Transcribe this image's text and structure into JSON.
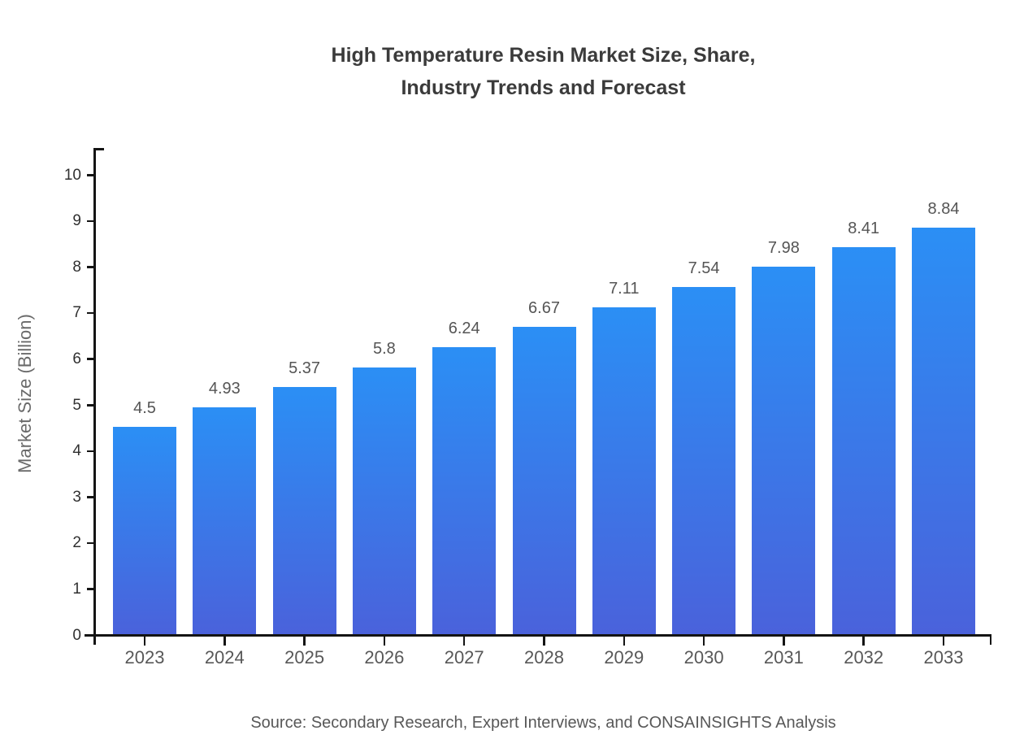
{
  "title": {
    "line1": "High Temperature Resin Market Size, Share,",
    "line2": "Industry Trends and Forecast"
  },
  "source": "Source: Secondary Research, Expert Interviews, and CONSAINSIGHTS Analysis",
  "chart_data": {
    "type": "bar",
    "title": "High Temperature Resin Market Size, Share, Industry Trends and Forecast",
    "categories": [
      "2023",
      "2024",
      "2025",
      "2026",
      "2027",
      "2028",
      "2029",
      "2030",
      "2031",
      "2032",
      "2033"
    ],
    "values": [
      4.5,
      4.93,
      5.37,
      5.8,
      6.24,
      6.67,
      7.11,
      7.54,
      7.98,
      8.41,
      8.84
    ],
    "value_labels": [
      "4.5",
      "4.93",
      "5.37",
      "5.8",
      "6.24",
      "6.67",
      "7.11",
      "7.54",
      "7.98",
      "8.41",
      "8.84"
    ],
    "xlabel": "",
    "ylabel": "Market Size (Billion)",
    "ylim": [
      0,
      10.58
    ],
    "yticks": [
      0,
      1,
      2,
      3,
      4,
      5,
      6,
      7,
      8,
      9,
      10
    ],
    "grid": false,
    "legend": null,
    "colors": {
      "bar_gradient_top": "#2b8ff5",
      "bar_gradient_bottom": "#4a62db",
      "axis": "#141414",
      "title_text": "#3b3b3b",
      "label_text": "#555555"
    }
  }
}
